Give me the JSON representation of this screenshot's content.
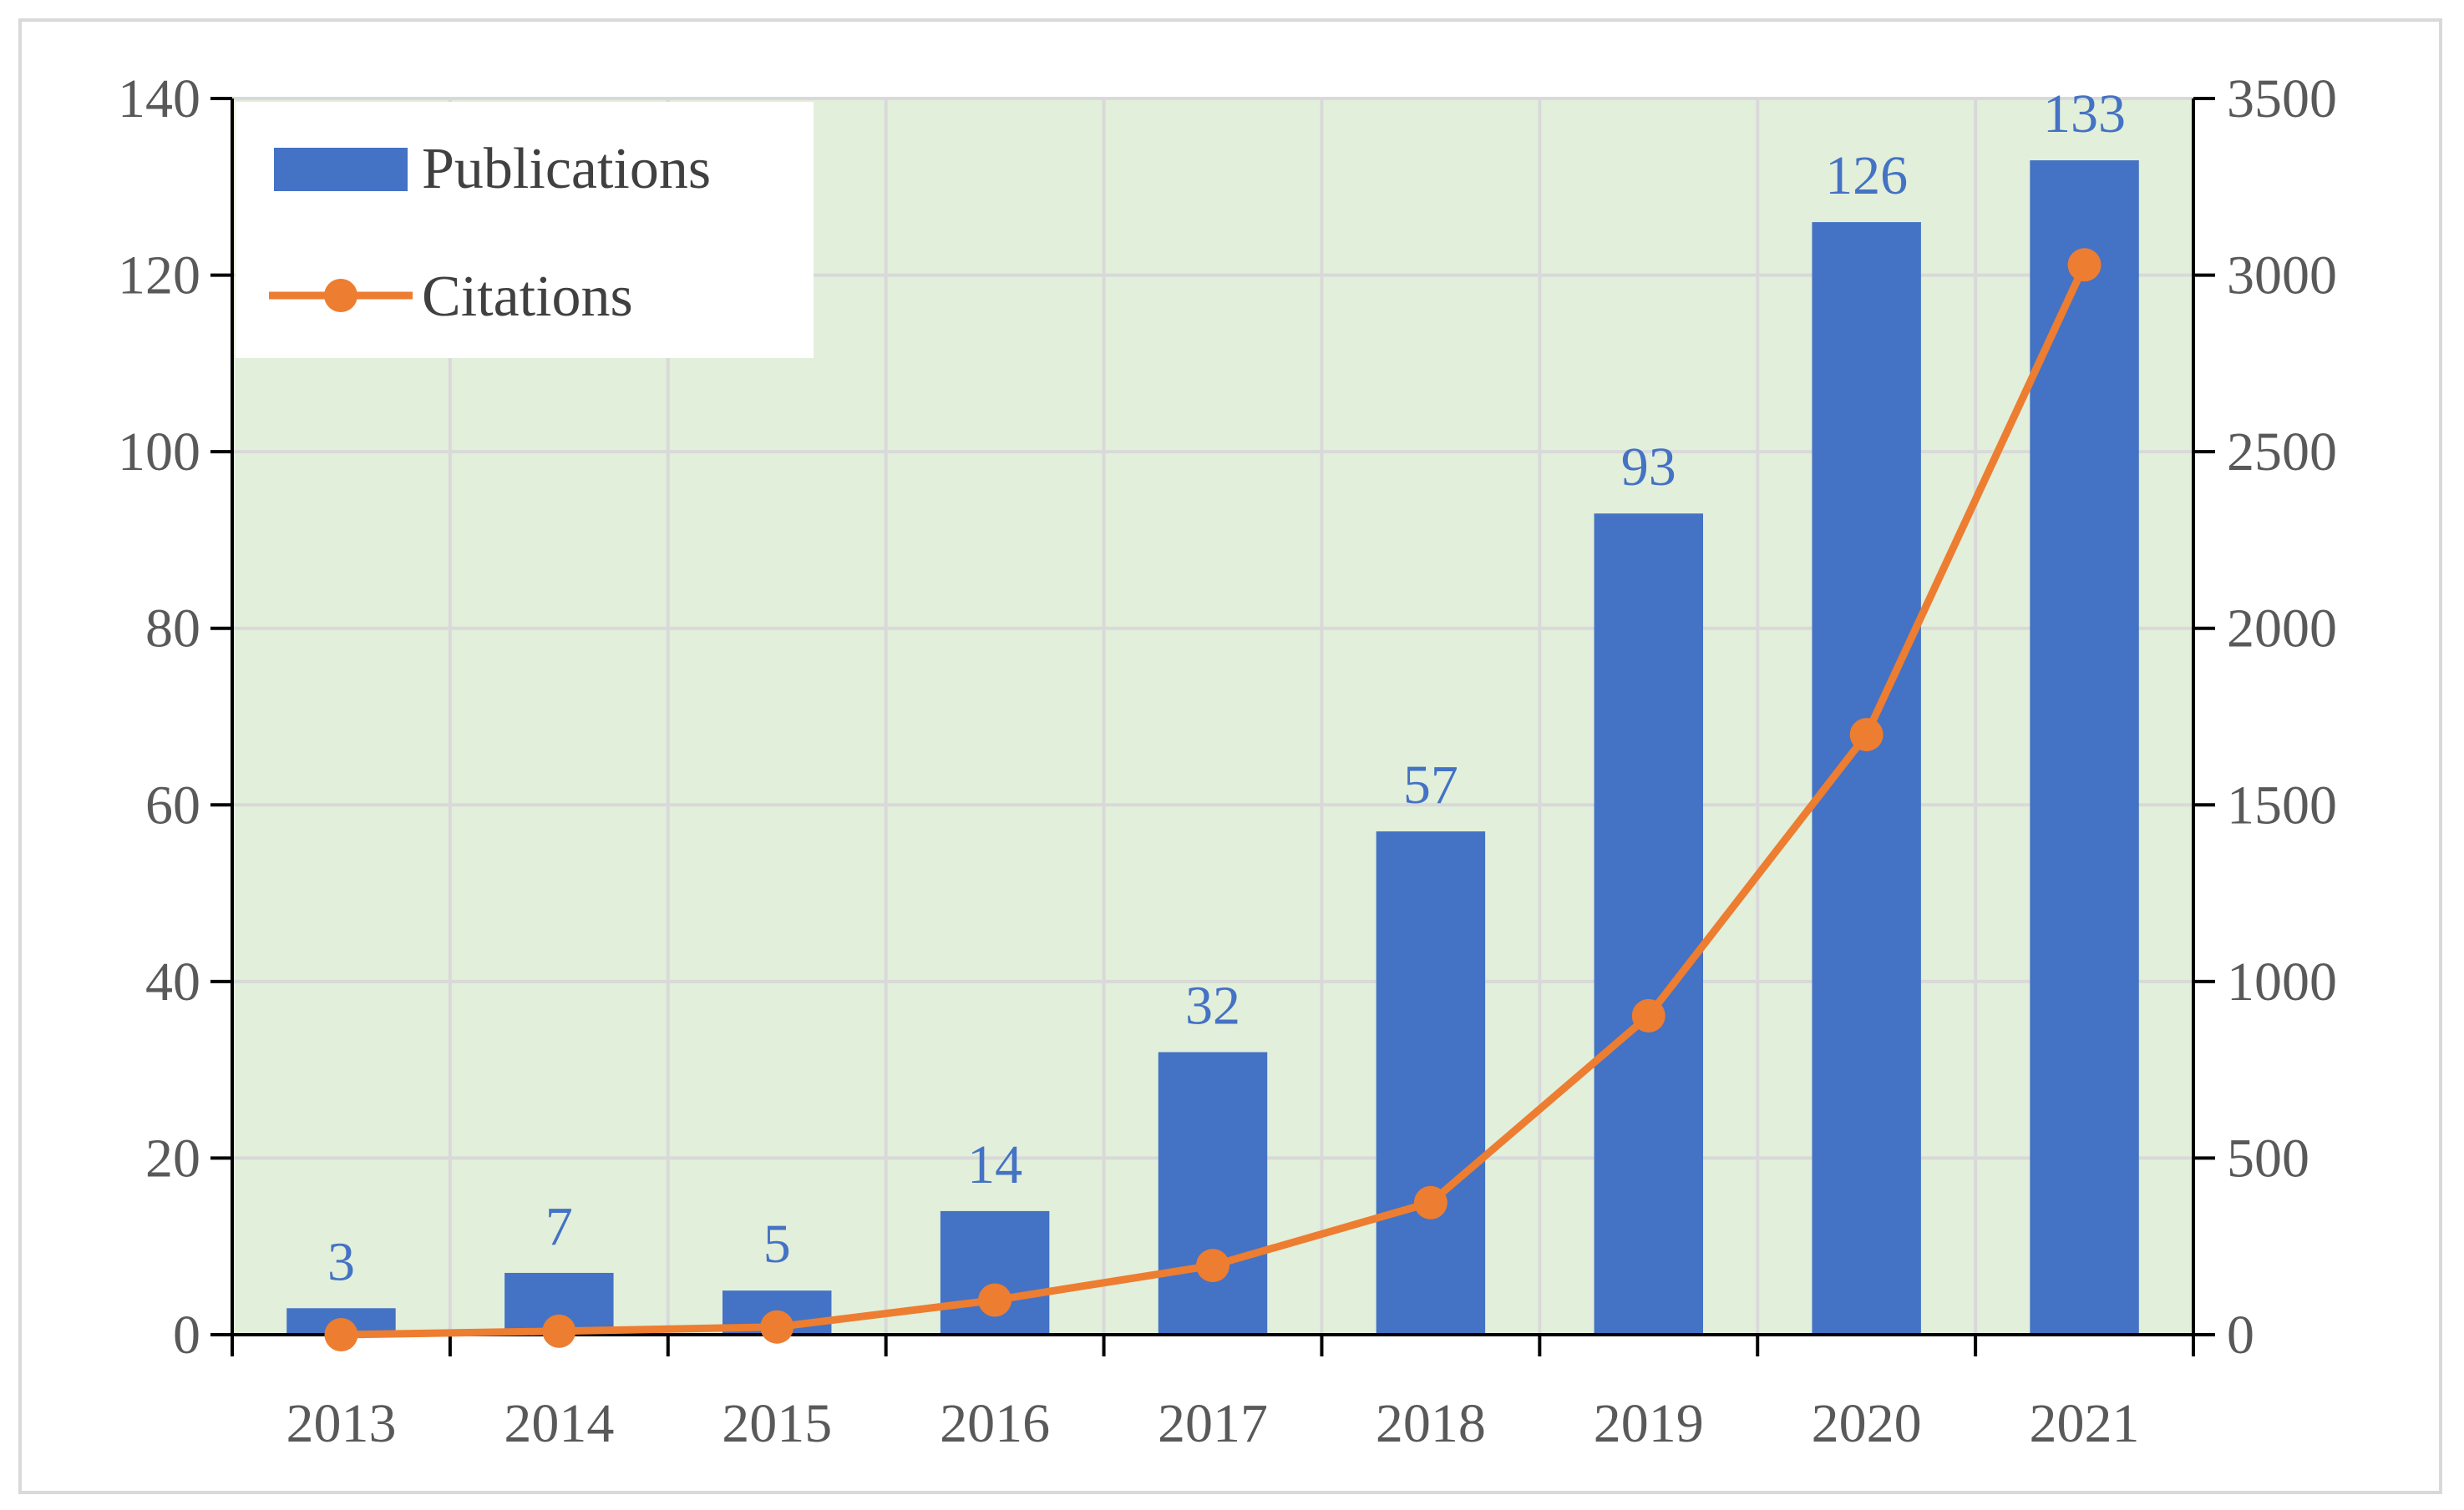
{
  "chart_data": {
    "type": "bar+line",
    "categories": [
      "2013",
      "2014",
      "2015",
      "2016",
      "2017",
      "2018",
      "2019",
      "2020",
      "2021"
    ],
    "series": [
      {
        "name": "Publications",
        "type": "bar",
        "axis": "left",
        "color": "#4472c4",
        "values": [
          3,
          7,
          5,
          14,
          32,
          57,
          93,
          126,
          133
        ],
        "data_labels": true
      },
      {
        "name": "Citations",
        "type": "line",
        "axis": "right",
        "color": "#ed7d31",
        "markers": "circle",
        "values": [
          0,
          10,
          22,
          98,
          196,
          374,
          903,
          1699,
          3029
        ]
      }
    ],
    "y_left": {
      "lim": [
        0,
        140
      ],
      "ticks": [
        0,
        20,
        40,
        60,
        80,
        100,
        120,
        140
      ]
    },
    "y_right": {
      "lim": [
        0,
        3500
      ],
      "ticks": [
        0,
        500,
        1000,
        1500,
        2000,
        2500,
        3000,
        3500
      ]
    },
    "title": "",
    "xlabel": "",
    "ylabel": "",
    "grid": true,
    "plot_background": "#e2efda",
    "grid_color": "#d9d9d9",
    "legend": "top-left"
  }
}
